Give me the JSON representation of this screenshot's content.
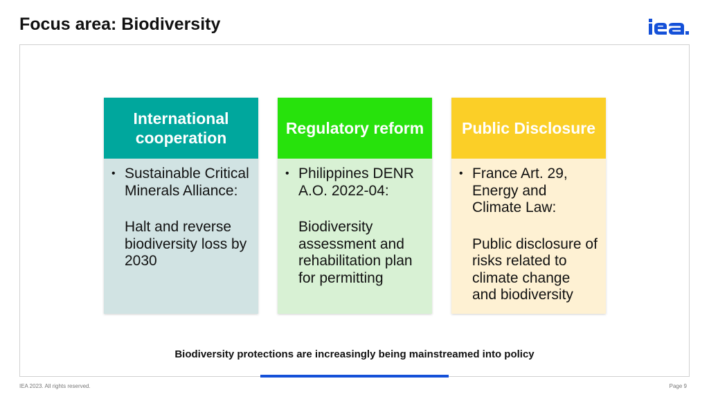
{
  "slide": {
    "title": "Focus area: Biodiversity"
  },
  "logo": {
    "text": "iea",
    "color": "#1450d8"
  },
  "cards": [
    {
      "header": "International cooperation",
      "color": "#00a79d",
      "body_color": "#d1e3e3",
      "item_title": "Sustainable Critical Minerals Alliance:",
      "item_detail": "Halt and reverse biodiversity loss by 2030"
    },
    {
      "header": "Regulatory reform",
      "color": "#27e20c",
      "body_color": "#d8f1d4",
      "item_title": "Philippines DENR A.O. 2022-04:",
      "item_detail": "Biodiversity assessment and rehabilitation plan for permitting"
    },
    {
      "header": "Public Disclosure",
      "color": "#fbcf27",
      "body_color": "#fef1d3",
      "item_title": "France Art. 29, Energy and Climate Law:",
      "item_detail": "Public disclosure of risks related to climate change and biodiversity"
    }
  ],
  "caption": "Biodiversity protections are increasingly being mainstreamed into policy",
  "footer": {
    "copyright": "IEA 2023. All rights reserved.",
    "page": "Page 9"
  },
  "accent_color": "#1450d8"
}
